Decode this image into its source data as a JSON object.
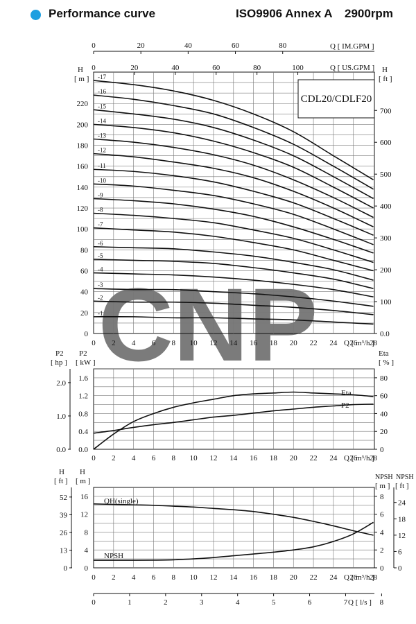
{
  "header": {
    "title": "Performance curve",
    "standard": "ISO9906 Annex A",
    "speed": "2900rpm",
    "bullet_color": "#1e9fe0"
  },
  "watermark": {
    "text": "CNP",
    "color": "#9fd0f2"
  },
  "axes": {
    "imgpm": {
      "label": "Q  [ IM.GPM ]",
      "ticks": [
        "0",
        "20",
        "40",
        "60",
        "80"
      ]
    },
    "usgpm": {
      "label": "Q  [ US.GPM ]",
      "ticks": [
        "0",
        "20",
        "40",
        "60",
        "80",
        "100"
      ]
    },
    "head_left": {
      "h": "H",
      "unit": "[ m ]",
      "ticks": [
        "0",
        "20",
        "40",
        "60",
        "80",
        "100",
        "120",
        "140",
        "160",
        "180",
        "200",
        "220"
      ]
    },
    "head_right": {
      "h": "H",
      "unit": "[ ft ]",
      "ticks": [
        "0.0",
        "100",
        "200",
        "300",
        "400",
        "500",
        "600",
        "700"
      ]
    },
    "flow_m3h_1": {
      "label": "Q  [ m³/h ]",
      "ticks": [
        "0",
        "2",
        "4",
        "6",
        "8",
        "10",
        "12",
        "14",
        "16",
        "18",
        "20",
        "22",
        "24",
        "26",
        "28"
      ]
    },
    "p2_hp": {
      "title": "P2",
      "unit": "[ hp ]",
      "ticks": [
        "0.0",
        "1.0",
        "2.0"
      ]
    },
    "p2_kw": {
      "title": "P2",
      "unit": "[ kW ]",
      "ticks": [
        "0.0",
        "0.4",
        "0.8",
        "1.2",
        "1.6"
      ]
    },
    "eta": {
      "title": "Eta",
      "unit": "[ % ]",
      "ticks": [
        "0",
        "20",
        "40",
        "60",
        "80"
      ]
    },
    "flow_m3h_2": {
      "label": "Q  [ m³/h ]",
      "ticks": [
        "0",
        "2",
        "4",
        "6",
        "8",
        "10",
        "12",
        "14",
        "16",
        "18",
        "20",
        "22",
        "24",
        "26",
        "28"
      ]
    },
    "npsh_ft_left": {
      "h": "H",
      "unit": "[ ft ]",
      "ticks": [
        "0",
        "13",
        "26",
        "39",
        "52"
      ]
    },
    "npsh_m_left": {
      "h": "H",
      "unit": "[ m ]",
      "ticks": [
        "0",
        "4",
        "8",
        "12",
        "16"
      ]
    },
    "npsh_m_right": {
      "title": "NPSH",
      "unit": "[ m ]",
      "ticks": [
        "0",
        "2",
        "4",
        "6",
        "8"
      ]
    },
    "npsh_ft_right": {
      "title": "NPSH",
      "unit": "[ ft ]",
      "ticks": [
        "0",
        "6",
        "12",
        "18",
        "24"
      ]
    },
    "flow_m3h_3": {
      "label": "Q  [ m³/h ]",
      "ticks": [
        "0",
        "2",
        "4",
        "6",
        "8",
        "10",
        "12",
        "14",
        "16",
        "18",
        "20",
        "22",
        "24",
        "26",
        "28"
      ]
    },
    "flow_ls": {
      "label": "Q  [ l/s ]",
      "ticks": [
        "0",
        "1",
        "2",
        "3",
        "4",
        "5",
        "6",
        "7",
        "8"
      ]
    }
  },
  "chart_data": [
    {
      "type": "line",
      "model": "CDL20/CDLF20",
      "x": [
        0,
        4,
        8,
        12,
        16,
        20,
        24,
        28
      ],
      "xlabel": "Q [m³/h]",
      "ylabel": "H [m]",
      "xlim": [
        0,
        28
      ],
      "ylim": [
        0,
        240
      ],
      "series": [
        {
          "name": "-17",
          "values": [
            242,
            238,
            232,
            223,
            210,
            193,
            170,
            147
          ]
        },
        {
          "name": "-16",
          "values": [
            228,
            224,
            218,
            210,
            197,
            181,
            160,
            138
          ]
        },
        {
          "name": "-15",
          "values": [
            214,
            210,
            205,
            197,
            185,
            170,
            150,
            129
          ]
        },
        {
          "name": "-14",
          "values": [
            200,
            197,
            192,
            184,
            173,
            159,
            140,
            120
          ]
        },
        {
          "name": "-13",
          "values": [
            186,
            183,
            178,
            171,
            161,
            147,
            130,
            111
          ]
        },
        {
          "name": "-12",
          "values": [
            172,
            169,
            164,
            158,
            149,
            136,
            120,
            102
          ]
        },
        {
          "name": "-11",
          "values": [
            157,
            155,
            151,
            145,
            136,
            125,
            110,
            94
          ]
        },
        {
          "name": "-10",
          "values": [
            143,
            141,
            137,
            132,
            124,
            114,
            100,
            85
          ]
        },
        {
          "name": "-9",
          "values": [
            129,
            127,
            124,
            119,
            112,
            102,
            90,
            77
          ]
        },
        {
          "name": "-8",
          "values": [
            115,
            113,
            110,
            106,
            99,
            91,
            80,
            68
          ]
        },
        {
          "name": "-7",
          "values": [
            101,
            99,
            97,
            93,
            87,
            80,
            70,
            60
          ]
        },
        {
          "name": "-6",
          "values": [
            83,
            82,
            81,
            78,
            74,
            68,
            61,
            51
          ]
        },
        {
          "name": "-5",
          "values": [
            71,
            70,
            69,
            67,
            63,
            58,
            52,
            43
          ]
        },
        {
          "name": "-4",
          "values": [
            58,
            57,
            56,
            54,
            51,
            47,
            42,
            35
          ]
        },
        {
          "name": "-3",
          "values": [
            43,
            42,
            42,
            40,
            38,
            35,
            31,
            26
          ]
        },
        {
          "name": "-2",
          "values": [
            31,
            30,
            30,
            29,
            27,
            25,
            22,
            18
          ]
        },
        {
          "name": "-1",
          "values": [
            16,
            16,
            15,
            15,
            14,
            13,
            11,
            9
          ]
        }
      ]
    },
    {
      "type": "line",
      "x": [
        0,
        2,
        4,
        6,
        8,
        10,
        12,
        14,
        16,
        18,
        20,
        22,
        24,
        26,
        28
      ],
      "xlabel": "Q [m³/h]",
      "xlim": [
        0,
        28
      ],
      "series": [
        {
          "name": "Eta",
          "axis": "Eta [%]",
          "ylim": [
            0,
            80
          ],
          "values": [
            0,
            17,
            31,
            40,
            47,
            52,
            56,
            60,
            62,
            63,
            64,
            63,
            62,
            61,
            59
          ]
        },
        {
          "name": "P2",
          "axis": "P2 [kW]",
          "ylim": [
            0,
            1.6
          ],
          "values": [
            0.36,
            0.42,
            0.49,
            0.55,
            0.6,
            0.66,
            0.72,
            0.76,
            0.81,
            0.86,
            0.9,
            0.94,
            0.97,
            1.0,
            1.01
          ]
        }
      ]
    },
    {
      "type": "line",
      "x": [
        0,
        2,
        4,
        6,
        8,
        10,
        12,
        14,
        16,
        18,
        20,
        22,
        24,
        26,
        28
      ],
      "xlabel": "Q [m³/h]",
      "xlim": [
        0,
        28
      ],
      "series": [
        {
          "name": "QH(single)",
          "axis": "H [m]",
          "ylim": [
            0,
            16
          ],
          "values": [
            14.3,
            14.2,
            14.1,
            14.0,
            13.8,
            13.6,
            13.3,
            13.0,
            12.6,
            12.0,
            11.3,
            10.4,
            9.4,
            8.3,
            7.3
          ]
        },
        {
          "name": "NPSH",
          "axis": "NPSH [m]",
          "ylim": [
            0,
            8
          ],
          "values": [
            0.85,
            0.85,
            0.85,
            0.86,
            0.9,
            1.0,
            1.15,
            1.35,
            1.55,
            1.75,
            2.0,
            2.35,
            2.95,
            3.8,
            5.1
          ]
        }
      ]
    }
  ]
}
